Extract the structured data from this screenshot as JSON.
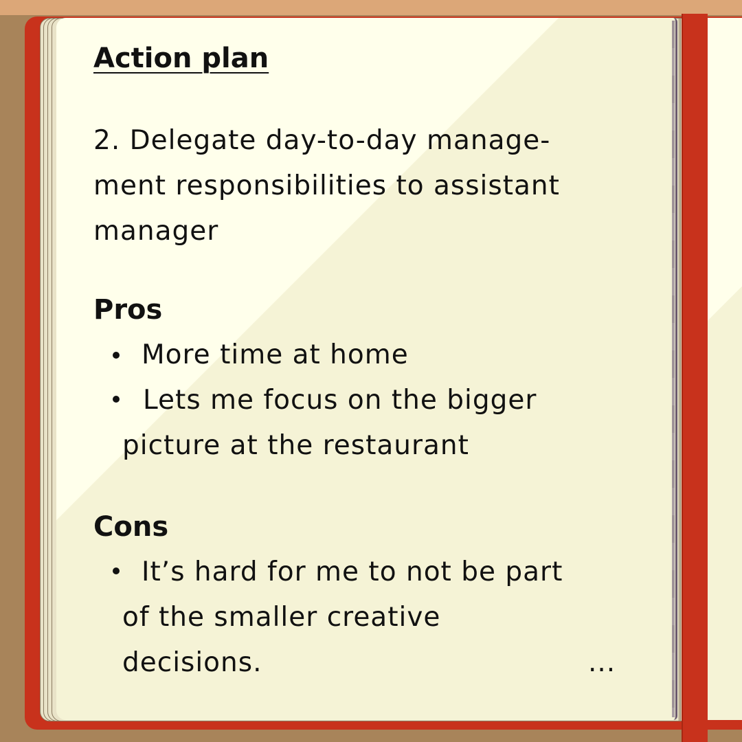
{
  "notebook": {
    "title": "Action plan",
    "item": {
      "lines": [
        "2. Delegate day-to-day manage-",
        "ment responsibilities to assistant",
        "manager"
      ]
    },
    "pros": {
      "heading": "Pros",
      "bullets": [
        {
          "lines": [
            "More time at home"
          ]
        },
        {
          "lines": [
            "Lets me focus on the bigger",
            "picture at the restaurant"
          ]
        }
      ]
    },
    "cons": {
      "heading": "Cons",
      "bullets": [
        {
          "lines": [
            "It’s hard for me to not be part",
            "of the smaller creative",
            "decisions."
          ]
        }
      ]
    },
    "continuation": "..."
  },
  "colors": {
    "cover": "#c8321c",
    "page": "#ffffeb",
    "page_shade": "#f5f3d6",
    "table": "#a8845a",
    "table_edge": "#dca778",
    "ink": "#111111"
  }
}
